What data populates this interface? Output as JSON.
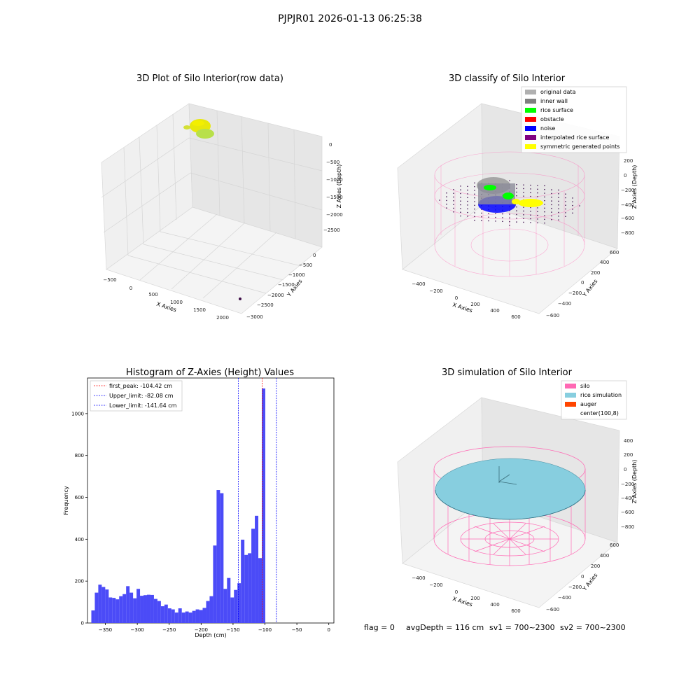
{
  "suptitle": "PJPJR01 2026-01-13 06:25:38",
  "footer": {
    "flag": "flag = 0",
    "avg_depth": "avgDepth = 116 cm",
    "sv1": "sv1 = 700~2300",
    "sv2": "sv2 = 700~2300"
  },
  "colors": {
    "hist_bar": "#4b4bf7",
    "first_peak": "#ff0000",
    "limits": "#0000ff",
    "silo": "#ff69b4",
    "rice": "#87cedf",
    "auger": "#ff4500",
    "original": "#b0b0b0",
    "inner_wall": "#808080",
    "rice_surface": "#00ff00",
    "obstacle": "#ff0000",
    "noise": "#0000ff",
    "interpolated": "#800080",
    "symmetric": "#ffff00"
  },
  "chart_data": [
    {
      "type": "scatter",
      "title": "3D Plot of Silo Interior(row data)",
      "xlabel": "X Axies",
      "ylabel": "Y Axies",
      "zlabel": "Z Axies (Depth)",
      "xticks": [
        "−500",
        "0",
        "500",
        "1000",
        "1500",
        "2000"
      ],
      "yticks": [
        "0",
        "−500",
        "−1000",
        "−1500",
        "−2000",
        "−2500",
        "−3000"
      ],
      "zticks": [
        "0",
        "−500",
        "−1000",
        "−1500",
        "−2000",
        "−2500"
      ]
    },
    {
      "type": "scatter",
      "title": "3D classify of Silo Interior",
      "xlabel": "X Axies",
      "ylabel": "Y Axies",
      "zlabel": "Z Axies (Depth)",
      "xticks": [
        "−400",
        "−200",
        "0",
        "200",
        "400",
        "600"
      ],
      "yticks": [
        "600",
        "400",
        "200",
        "0",
        "−200",
        "−400",
        "−600"
      ],
      "zticks": [
        "200",
        "0",
        "−200",
        "−400",
        "−600",
        "−800"
      ],
      "legend": [
        "original data",
        "inner wall",
        "rice surface",
        "obstacle",
        "noise",
        "interpolated rice surface",
        "symmetric generated points"
      ],
      "legend_position": "top-right"
    },
    {
      "type": "bar",
      "title": "Histogram of Z-Axies (Height) Values",
      "xlabel": "Depth (cm)",
      "ylabel": "Frequency",
      "xlim": [
        -378,
        8
      ],
      "ylim": [
        0,
        1170
      ],
      "xticks": [
        -350,
        -300,
        -250,
        -200,
        -150,
        -100,
        -50,
        0
      ],
      "xtick_labels": [
        "−350",
        "−300",
        "−250",
        "−200",
        "−150",
        "−100",
        "−50",
        "0"
      ],
      "yticks": [
        0,
        200,
        400,
        600,
        800,
        1000
      ],
      "bin_start": -372,
      "bin_width": 5.45,
      "values": [
        60,
        145,
        183,
        172,
        160,
        122,
        120,
        113,
        128,
        138,
        176,
        145,
        118,
        163,
        130,
        133,
        135,
        134,
        115,
        105,
        80,
        88,
        70,
        65,
        50,
        70,
        50,
        55,
        50,
        58,
        65,
        62,
        72,
        105,
        128,
        370,
        635,
        620,
        163,
        215,
        122,
        158,
        190,
        398,
        325,
        333,
        450,
        512,
        310,
        1120
      ],
      "lines": [
        {
          "label": "first_peak: -104.42 cm",
          "x": -104.42,
          "color": "#ff0000"
        },
        {
          "label": "Upper_limit: -82.08 cm",
          "x": -82.08,
          "color": "#0000ff"
        },
        {
          "label": "Lower_limit: -141.64 cm",
          "x": -141.64,
          "color": "#0000ff"
        }
      ],
      "legend_position": "top-left"
    },
    {
      "type": "scatter",
      "title": "3D simulation of Silo Interior",
      "xlabel": "X Axies",
      "ylabel": "Y Axies",
      "zlabel": "Z Axies (Depth)",
      "xticks": [
        "−400",
        "−200",
        "0",
        "200",
        "400",
        "600"
      ],
      "yticks": [
        "600",
        "400",
        "200",
        "0",
        "−200",
        "−400",
        "−600"
      ],
      "zticks": [
        "400",
        "200",
        "0",
        "−200",
        "−400",
        "−600",
        "−800"
      ],
      "legend": [
        "silo",
        "rice simulation",
        "auger",
        "center(100,8)"
      ],
      "legend_position": "top-right"
    }
  ]
}
